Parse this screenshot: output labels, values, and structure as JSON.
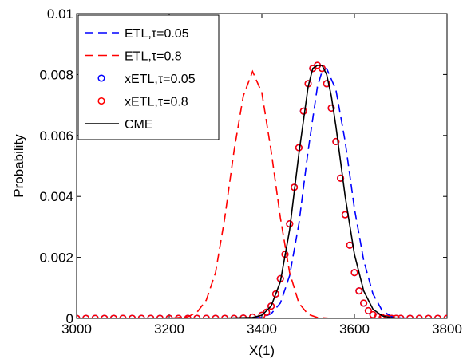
{
  "chart_data": {
    "type": "line",
    "xlabel": "X(1)",
    "ylabel": "Probability",
    "xlim": [
      3000,
      3800
    ],
    "ylim": [
      0,
      0.01
    ],
    "xticks": [
      "3000",
      "3200",
      "3400",
      "3600",
      "3800"
    ],
    "yticks": [
      "0",
      "0.002",
      "0.004",
      "0.006",
      "0.008",
      "0.01"
    ],
    "grid": false,
    "legend_position": "top-left",
    "series": [
      {
        "name": "ETL,τ=0.05",
        "style": "dashed",
        "marker": "none",
        "color": "#0000ff",
        "x": [
          3000,
          3100,
          3200,
          3300,
          3350,
          3400,
          3420,
          3440,
          3460,
          3480,
          3500,
          3520,
          3530,
          3540,
          3560,
          3580,
          3600,
          3620,
          3640,
          3660,
          3680,
          3700,
          3750,
          3800
        ],
        "y": [
          0,
          0,
          0,
          0,
          0,
          3e-05,
          0.00015,
          0.0005,
          0.0014,
          0.0031,
          0.0055,
          0.0076,
          0.0081,
          0.0082,
          0.0075,
          0.0058,
          0.0036,
          0.0019,
          0.0008,
          0.00025,
          6e-05,
          1e-05,
          0,
          0
        ]
      },
      {
        "name": "ETL,τ=0.8",
        "style": "dashed",
        "marker": "none",
        "color": "#ff0000",
        "x": [
          3000,
          3200,
          3240,
          3260,
          3280,
          3300,
          3320,
          3340,
          3360,
          3380,
          3400,
          3420,
          3440,
          3460,
          3480,
          3500,
          3520,
          3550,
          3600,
          3800
        ],
        "y": [
          0,
          0,
          5e-05,
          0.0002,
          0.0006,
          0.0015,
          0.0033,
          0.0055,
          0.0073,
          0.0081,
          0.0074,
          0.0055,
          0.0033,
          0.0015,
          0.0005,
          0.00013,
          3e-05,
          0,
          0,
          0
        ]
      },
      {
        "name": "xETL,τ=0.05",
        "style": "none",
        "marker": "circle",
        "color": "#0000ff",
        "x": [
          3000,
          3020,
          3040,
          3060,
          3080,
          3100,
          3120,
          3140,
          3160,
          3180,
          3200,
          3220,
          3240,
          3260,
          3280,
          3300,
          3320,
          3340,
          3360,
          3380,
          3400,
          3410,
          3420,
          3430,
          3440,
          3450,
          3460,
          3470,
          3480,
          3490,
          3500,
          3510,
          3520,
          3530,
          3540,
          3550,
          3560,
          3570,
          3580,
          3590,
          3600,
          3610,
          3620,
          3630,
          3640,
          3650,
          3660,
          3670,
          3680,
          3690,
          3700,
          3720,
          3740,
          3760,
          3780,
          3800
        ],
        "y": [
          0,
          0,
          0,
          0,
          0,
          0,
          0,
          0,
          0,
          0,
          0,
          0,
          0,
          0,
          0,
          0,
          0,
          0,
          1e-05,
          4e-05,
          0.0001,
          0.0002,
          0.0004,
          0.0008,
          0.0013,
          0.0021,
          0.0031,
          0.0043,
          0.0056,
          0.0068,
          0.0077,
          0.0082,
          0.0083,
          0.0082,
          0.0077,
          0.0069,
          0.0058,
          0.0046,
          0.0034,
          0.0024,
          0.0015,
          0.0009,
          0.0005,
          0.00025,
          0.00012,
          5e-05,
          2e-05,
          0,
          0,
          0,
          0,
          0,
          0,
          0,
          0,
          0
        ]
      },
      {
        "name": "xETL,τ=0.8",
        "style": "none",
        "marker": "circle",
        "color": "#ff0000",
        "x": [
          3000,
          3020,
          3040,
          3060,
          3080,
          3100,
          3120,
          3140,
          3160,
          3180,
          3200,
          3220,
          3240,
          3260,
          3280,
          3300,
          3320,
          3340,
          3360,
          3380,
          3400,
          3410,
          3420,
          3430,
          3440,
          3450,
          3460,
          3470,
          3480,
          3490,
          3500,
          3510,
          3520,
          3530,
          3540,
          3550,
          3560,
          3570,
          3580,
          3590,
          3600,
          3610,
          3620,
          3630,
          3640,
          3650,
          3660,
          3670,
          3680,
          3690,
          3700,
          3720,
          3740,
          3760,
          3780,
          3800
        ],
        "y": [
          0,
          0,
          0,
          0,
          0,
          0,
          0,
          0,
          0,
          0,
          0,
          0,
          0,
          0,
          0,
          0,
          0,
          0,
          1e-05,
          4e-05,
          0.0001,
          0.0002,
          0.0004,
          0.0008,
          0.0013,
          0.0021,
          0.0031,
          0.0043,
          0.0056,
          0.0068,
          0.0077,
          0.0082,
          0.0083,
          0.0082,
          0.0077,
          0.0069,
          0.0058,
          0.0046,
          0.0034,
          0.0024,
          0.0015,
          0.0009,
          0.0005,
          0.00025,
          0.00012,
          5e-05,
          2e-05,
          0,
          0,
          0,
          0,
          0,
          0,
          0,
          0,
          0
        ]
      },
      {
        "name": "CME",
        "style": "solid",
        "marker": "none",
        "color": "#000000",
        "x": [
          3000,
          3100,
          3200,
          3300,
          3380,
          3400,
          3420,
          3440,
          3460,
          3480,
          3500,
          3510,
          3520,
          3530,
          3540,
          3550,
          3560,
          3580,
          3600,
          3620,
          3640,
          3660,
          3680,
          3700,
          3750,
          3800
        ],
        "y": [
          0,
          0,
          0,
          0,
          3e-05,
          0.0001,
          0.0004,
          0.0012,
          0.0029,
          0.0054,
          0.0076,
          0.0082,
          0.0083,
          0.0083,
          0.008,
          0.0073,
          0.0063,
          0.004,
          0.0021,
          0.0009,
          0.0003,
          8e-05,
          2e-05,
          0,
          0,
          0
        ]
      }
    ]
  }
}
